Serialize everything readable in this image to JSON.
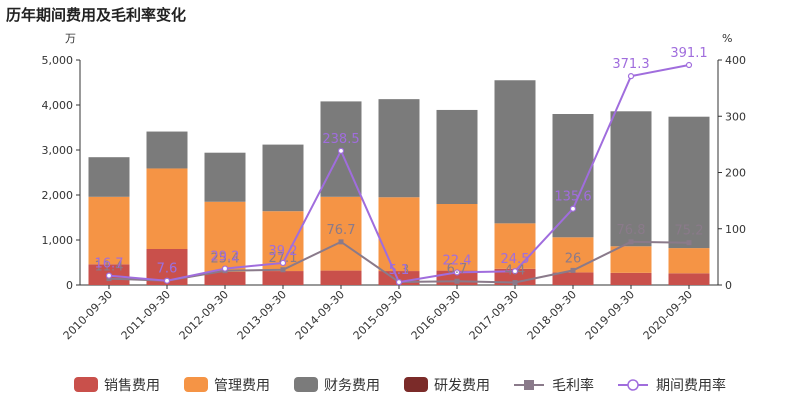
{
  "title": "历年期间费用及毛利率变化",
  "chart_data": {
    "type": "bar",
    "stacked": true,
    "title": "历年期间费用及毛利率变化",
    "categories": [
      "2010-09-30",
      "2011-09-30",
      "2012-09-30",
      "2013-09-30",
      "2014-09-30",
      "2015-09-30",
      "2016-09-30",
      "2017-09-30",
      "2018-09-30",
      "2019-09-30",
      "2020-09-30"
    ],
    "left_axis": {
      "unit": "万",
      "ylim": [
        0,
        5000
      ],
      "ticks": [
        0,
        1000,
        2000,
        3000,
        4000,
        5000
      ],
      "tick_labels": [
        "0",
        "1,000",
        "2,000",
        "3,000",
        "4,000",
        "5,000"
      ]
    },
    "right_axis": {
      "unit": "%",
      "ylim": [
        0,
        400
      ],
      "ticks": [
        0,
        100,
        200,
        300,
        400
      ],
      "tick_labels": [
        "0",
        "100",
        "200",
        "300",
        "400"
      ]
    },
    "series": [
      {
        "name": "销售费用",
        "type": "bar",
        "axis": "left",
        "color": "#c9504b",
        "values": [
          460,
          800,
          290,
          310,
          320,
          310,
          320,
          360,
          280,
          270,
          260
        ]
      },
      {
        "name": "管理费用",
        "type": "bar",
        "axis": "left",
        "color": "#f59445",
        "values": [
          1500,
          1790,
          1560,
          1330,
          1640,
          1640,
          1480,
          1010,
          780,
          590,
          560
        ]
      },
      {
        "name": "财务费用",
        "type": "bar",
        "axis": "left",
        "color": "#7b7b7b",
        "values": [
          880,
          820,
          1090,
          1480,
          2120,
          2180,
          2090,
          3180,
          2740,
          3000,
          2920
        ]
      },
      {
        "name": "研发费用",
        "type": "bar",
        "axis": "left",
        "color": "#7b2b29",
        "values": [
          0,
          0,
          0,
          0,
          0,
          0,
          0,
          0,
          0,
          0,
          0
        ]
      },
      {
        "name": "毛利率",
        "type": "line",
        "axis": "right",
        "color": "#8a7a8a",
        "marker": "square",
        "values": [
          11.4,
          7.6,
          25.4,
          27.1,
          76.7,
          5.3,
          6.7,
          4.4,
          26,
          76.8,
          75.2
        ],
        "labels": [
          "11.4",
          "7.6",
          "25.4",
          "27.1",
          "76.7",
          "5.3",
          "6.7",
          "4.4",
          "26",
          "76.8",
          "75.2"
        ]
      },
      {
        "name": "期间费用率",
        "type": "line",
        "axis": "right",
        "color": "#a06ddd",
        "marker": "circle",
        "values": [
          16.7,
          7.6,
          29.2,
          39.2,
          238.5,
          5.1,
          22.4,
          24.5,
          135.6,
          371.3,
          391.1
        ],
        "labels": [
          "16.7",
          "7.6",
          "29.2",
          "39.2",
          "238.5",
          "5.1",
          "22.4",
          "24.5",
          "135.6",
          "371.3",
          "391.1"
        ]
      }
    ],
    "legend": {
      "position": "bottom",
      "items": [
        {
          "name": "销售费用",
          "symbol": "bar",
          "color": "#c9504b"
        },
        {
          "name": "管理费用",
          "symbol": "bar",
          "color": "#f59445"
        },
        {
          "name": "财务费用",
          "symbol": "bar",
          "color": "#7b7b7b"
        },
        {
          "name": "研发费用",
          "symbol": "bar",
          "color": "#7b2b29"
        },
        {
          "name": "毛利率",
          "symbol": "line-square",
          "color": "#8a7a8a"
        },
        {
          "name": "期间费用率",
          "symbol": "line-circle",
          "color": "#a06ddd"
        }
      ]
    },
    "grid": false
  }
}
